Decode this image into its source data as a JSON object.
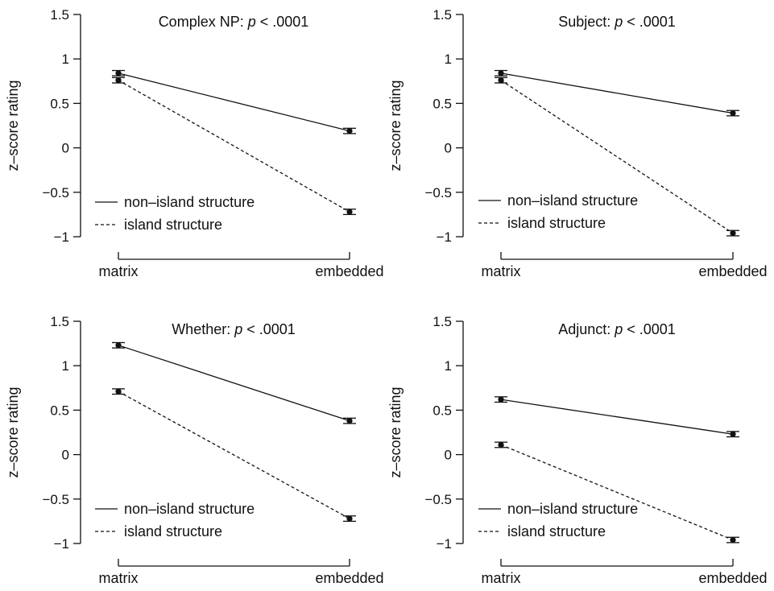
{
  "chart_data": [
    {
      "type": "line",
      "title_prefix": "Complex NP: ",
      "title_p": "p",
      "title_suffix": " < .0001",
      "ylabel": "z–score rating",
      "categories": [
        "matrix",
        "embedded"
      ],
      "ylim": [
        -1,
        1.5
      ],
      "yticks": [
        "1.5",
        "1",
        "0.5",
        "0",
        "−0.5",
        "−1"
      ],
      "ytick_values": [
        1.5,
        1,
        0.5,
        0,
        -0.5,
        -1
      ],
      "legend_position": "bottom-left",
      "series": [
        {
          "name": "non–island structure",
          "style": "solid",
          "values": [
            0.84,
            0.19
          ],
          "errors": [
            0.03,
            0.03
          ]
        },
        {
          "name": "island structure",
          "style": "dashed",
          "values": [
            0.76,
            -0.72
          ],
          "errors": [
            0.03,
            0.03
          ]
        }
      ]
    },
    {
      "type": "line",
      "title_prefix": "Subject: ",
      "title_p": "p",
      "title_suffix": " < .0001",
      "ylabel": "z–score rating",
      "categories": [
        "matrix",
        "embedded"
      ],
      "ylim": [
        -1,
        1.5
      ],
      "yticks": [
        "1.5",
        "1",
        "0.5",
        "0",
        "−0.5",
        "−1"
      ],
      "ytick_values": [
        1.5,
        1,
        0.5,
        0,
        -0.5,
        -1
      ],
      "legend_position": "bottom-left",
      "series": [
        {
          "name": "non–island structure",
          "style": "solid",
          "values": [
            0.84,
            0.39
          ],
          "errors": [
            0.03,
            0.03
          ]
        },
        {
          "name": "island structure",
          "style": "dashed",
          "values": [
            0.76,
            -0.96
          ],
          "errors": [
            0.03,
            0.03
          ]
        }
      ]
    },
    {
      "type": "line",
      "title_prefix": "Whether: ",
      "title_p": "p",
      "title_suffix": " < .0001",
      "ylabel": "z–score rating",
      "categories": [
        "matrix",
        "embedded"
      ],
      "ylim": [
        -1,
        1.5
      ],
      "yticks": [
        "1.5",
        "1",
        "0.5",
        "0",
        "−0.5",
        "−1"
      ],
      "ytick_values": [
        1.5,
        1,
        0.5,
        0,
        -0.5,
        -1
      ],
      "legend_position": "bottom-left",
      "series": [
        {
          "name": "non–island structure",
          "style": "solid",
          "values": [
            1.23,
            0.38
          ],
          "errors": [
            0.03,
            0.03
          ]
        },
        {
          "name": "island structure",
          "style": "dashed",
          "values": [
            0.71,
            -0.72
          ],
          "errors": [
            0.03,
            0.03
          ]
        }
      ]
    },
    {
      "type": "line",
      "title_prefix": "Adjunct: ",
      "title_p": "p",
      "title_suffix": " < .0001",
      "ylabel": "z–score rating",
      "categories": [
        "matrix",
        "embedded"
      ],
      "ylim": [
        -1,
        1.5
      ],
      "yticks": [
        "1.5",
        "1",
        "0.5",
        "0",
        "−0.5",
        "−1"
      ],
      "ytick_values": [
        1.5,
        1,
        0.5,
        0,
        -0.5,
        -1
      ],
      "legend_position": "bottom-left",
      "series": [
        {
          "name": "non–island structure",
          "style": "solid",
          "values": [
            0.62,
            0.23
          ],
          "errors": [
            0.03,
            0.03
          ]
        },
        {
          "name": "island structure",
          "style": "dashed",
          "values": [
            0.11,
            -0.96
          ],
          "errors": [
            0.03,
            0.03
          ]
        }
      ]
    }
  ]
}
